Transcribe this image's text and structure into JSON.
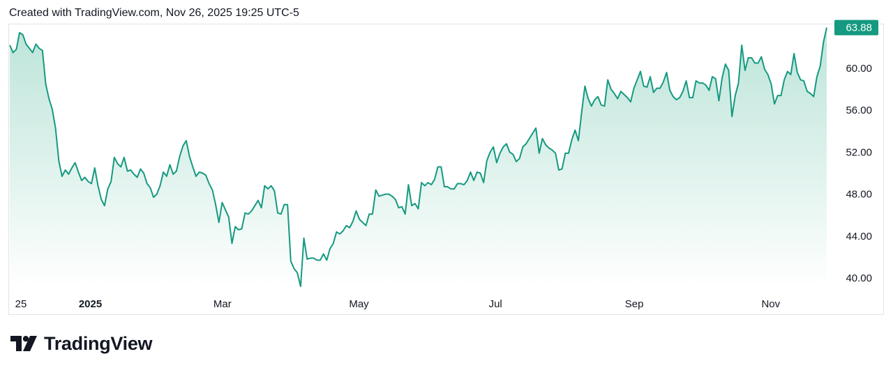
{
  "header": {
    "text": "Created with TradingView.com, Nov 26, 2025 19:25 UTC-5"
  },
  "logo": {
    "text": "TradingView"
  },
  "colors": {
    "line": "#159980",
    "badge": "#159980",
    "fill_top": "#b9e3d7",
    "fill_bottom": "#ffffff",
    "border": "#e0e3eb"
  },
  "chart_data": {
    "type": "area",
    "y_ticks": [
      "60.00",
      "56.00",
      "52.00",
      "48.00",
      "44.00",
      "40.00"
    ],
    "y_tick_values": [
      60,
      56,
      52,
      48,
      44,
      40
    ],
    "x_ticks": [
      {
        "label": "25",
        "date": "2024-12-01",
        "bold": false
      },
      {
        "label": "2025",
        "date": "2025-01-01",
        "bold": true
      },
      {
        "label": "Mar",
        "date": "2025-03-01",
        "bold": false
      },
      {
        "label": "May",
        "date": "2025-05-01",
        "bold": false
      },
      {
        "label": "Jul",
        "date": "2025-07-01",
        "bold": false
      },
      {
        "label": "Sep",
        "date": "2025-09-01",
        "bold": false
      },
      {
        "label": "Nov",
        "date": "2025-11-01",
        "bold": false
      }
    ],
    "ylim": [
      38.7,
      64.8
    ],
    "last_value_label": "63.88",
    "values": [
      62.2,
      61.5,
      61.8,
      63.4,
      63.2,
      62.3,
      61.9,
      61.5,
      62.3,
      61.9,
      61.7,
      58.5,
      57.1,
      56.1,
      54.3,
      51.2,
      49.7,
      50.3,
      49.9,
      50.5,
      51.0,
      50.1,
      49.3,
      49.6,
      49.2,
      49.0,
      50.5,
      48.8,
      47.5,
      46.9,
      48.5,
      49.2,
      51.5,
      50.9,
      50.6,
      51.5,
      50.2,
      50.3,
      49.9,
      49.6,
      50.4,
      50.0,
      49.0,
      48.6,
      47.7,
      48.0,
      48.8,
      50.1,
      49.7,
      50.8,
      49.9,
      50.2,
      51.6,
      52.6,
      53.1,
      51.6,
      50.6,
      49.7,
      50.1,
      50.0,
      49.8,
      49.0,
      48.4,
      47.0,
      45.3,
      47.2,
      46.5,
      45.8,
      43.3,
      44.9,
      44.6,
      44.7,
      46.2,
      46.1,
      46.4,
      46.9,
      47.4,
      46.7,
      48.8,
      48.5,
      48.8,
      48.3,
      46.2,
      46.1,
      47.0,
      47.0,
      41.6,
      40.9,
      40.5,
      39.2,
      43.8,
      41.8,
      41.9,
      41.9,
      41.7,
      41.7,
      42.3,
      41.7,
      42.8,
      43.3,
      44.4,
      44.2,
      44.5,
      45.0,
      44.8,
      45.4,
      46.4,
      45.6,
      45.3,
      45.0,
      46.1,
      46.1,
      48.4,
      47.8,
      47.9,
      48.0,
      48.0,
      47.8,
      47.5,
      46.7,
      46.8,
      46.1,
      48.9,
      46.9,
      47.1,
      46.6,
      49.1,
      48.8,
      49.1,
      48.9,
      49.4,
      50.6,
      50.6,
      48.7,
      48.7,
      48.5,
      48.5,
      49.0,
      49.0,
      48.9,
      49.3,
      50.1,
      49.3,
      50.1,
      50.0,
      49.1,
      51.2,
      52.0,
      52.5,
      51.0,
      51.9,
      52.5,
      52.8,
      52.0,
      51.8,
      51.1,
      51.4,
      52.5,
      52.8,
      53.3,
      53.8,
      54.3,
      51.9,
      53.3,
      52.7,
      52.4,
      52.2,
      51.9,
      50.3,
      50.4,
      51.9,
      51.9,
      53.2,
      54.1,
      53.1,
      55.8,
      58.3,
      57.1,
      56.4,
      57.0,
      57.3,
      56.5,
      56.4,
      58.9,
      58.0,
      57.6,
      57.1,
      57.8,
      57.5,
      57.2,
      56.8,
      58.1,
      58.9,
      59.7,
      58.3,
      58.2,
      59.2,
      57.7,
      58.1,
      58.1,
      58.7,
      59.6,
      57.9,
      57.3,
      57.0,
      57.2,
      57.8,
      58.8,
      57.2,
      57.2,
      58.8,
      58.6,
      58.6,
      58.4,
      57.9,
      59.2,
      59.0,
      56.9,
      59.1,
      60.4,
      59.8,
      55.4,
      57.4,
      58.6,
      62.2,
      59.8,
      61.0,
      61.0,
      60.5,
      60.5,
      61.1,
      59.9,
      59.4,
      58.5,
      56.6,
      57.4,
      57.4,
      58.9,
      59.7,
      59.4,
      61.4,
      59.6,
      58.9,
      58.8,
      57.8,
      57.6,
      57.3,
      59.2,
      60.2,
      62.5,
      63.88
    ]
  }
}
